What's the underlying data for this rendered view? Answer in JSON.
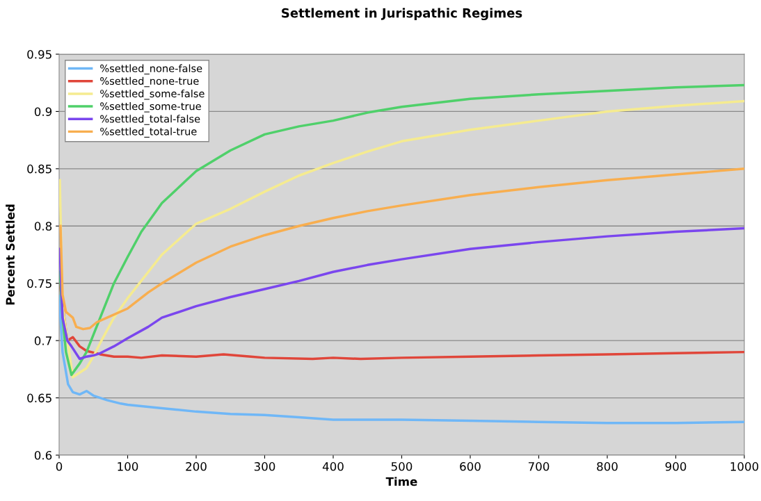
{
  "chart_data": {
    "type": "line",
    "title": "Settlement in Jurispathic Regimes",
    "xlabel": "Time",
    "ylabel": "Percent Settled",
    "xlim": [
      0,
      1000
    ],
    "ylim": [
      0.6,
      0.95
    ],
    "xticks": [
      0,
      100,
      200,
      300,
      400,
      500,
      600,
      700,
      800,
      900,
      1000
    ],
    "yticks": [
      {
        "value": 0.6,
        "label": "0.6"
      },
      {
        "value": 0.65,
        "label": "0.65"
      },
      {
        "value": 0.7,
        "label": "0.7"
      },
      {
        "value": 0.75,
        "label": "0.75"
      },
      {
        "value": 0.8,
        "label": "0.8"
      },
      {
        "value": 0.85,
        "label": "0.85"
      },
      {
        "value": 0.9,
        "label": "0.9"
      },
      {
        "value": 0.95,
        "label": "0.95"
      }
    ],
    "grid": "y",
    "legend": "upper left",
    "marker": "none",
    "line_style": "solid",
    "series": [
      {
        "name": "%settled_none-false",
        "color": "#6fb7f7",
        "x": [
          0,
          5,
          13,
          20,
          30,
          40,
          50,
          70,
          90,
          100,
          150,
          200,
          250,
          300,
          350,
          400,
          500,
          600,
          700,
          800,
          900,
          1000
        ],
        "values": [
          0.739,
          0.69,
          0.662,
          0.655,
          0.653,
          0.656,
          0.652,
          0.648,
          0.645,
          0.644,
          0.641,
          0.638,
          0.636,
          0.635,
          0.633,
          0.631,
          0.631,
          0.63,
          0.629,
          0.628,
          0.628,
          0.629
        ]
      },
      {
        "name": "%settled_none-true",
        "color": "#e0463a",
        "x": [
          1,
          5,
          12,
          20,
          30,
          40,
          60,
          80,
          100,
          120,
          150,
          200,
          240,
          280,
          300,
          370,
          400,
          440,
          500,
          600,
          700,
          800,
          900,
          1000
        ],
        "values": [
          0.75,
          null,
          0.7,
          0.703,
          0.695,
          0.691,
          0.688,
          0.686,
          0.686,
          0.685,
          0.687,
          0.686,
          0.688,
          0.686,
          0.685,
          0.684,
          0.685,
          0.684,
          0.685,
          0.686,
          0.687,
          0.688,
          0.689,
          0.69
        ]
      },
      {
        "name": "%settled_some-false",
        "color": "#f5eb90",
        "x": [
          1,
          5,
          10,
          20,
          30,
          40,
          50,
          60,
          80,
          100,
          150,
          200,
          250,
          300,
          350,
          400,
          450,
          500,
          600,
          700,
          800,
          900,
          1000
        ],
        "values": [
          0.84,
          0.73,
          null,
          0.668,
          0.672,
          0.676,
          0.686,
          0.698,
          0.72,
          0.737,
          0.775,
          0.802,
          0.815,
          0.83,
          0.844,
          0.855,
          0.865,
          0.874,
          0.884,
          0.892,
          0.9,
          0.905,
          0.909
        ]
      },
      {
        "name": "%settled_some-true",
        "color": "#4fd06a",
        "x": [
          1,
          5,
          10,
          18,
          30,
          40,
          50,
          60,
          80,
          100,
          120,
          150,
          200,
          250,
          300,
          350,
          400,
          450,
          500,
          600,
          700,
          800,
          900,
          1000
        ],
        "values": [
          0.76,
          0.72,
          0.69,
          0.67,
          0.68,
          0.69,
          0.705,
          0.72,
          0.75,
          0.773,
          0.795,
          0.82,
          0.848,
          0.866,
          0.88,
          0.887,
          0.892,
          0.899,
          0.904,
          0.911,
          0.915,
          0.918,
          0.921,
          0.923
        ]
      },
      {
        "name": "%settled_total-false",
        "color": "#7a46ee",
        "x": [
          1,
          5,
          12,
          18,
          30,
          40,
          50,
          60,
          80,
          100,
          130,
          150,
          200,
          250,
          300,
          350,
          400,
          450,
          500,
          600,
          700,
          800,
          900,
          1000
        ],
        "values": [
          0.78,
          0.72,
          0.7,
          0.695,
          0.684,
          0.686,
          0.687,
          0.689,
          0.695,
          0.702,
          0.712,
          0.72,
          0.73,
          0.738,
          0.745,
          0.752,
          0.76,
          0.766,
          0.771,
          0.78,
          0.786,
          0.791,
          0.795,
          0.798
        ]
      },
      {
        "name": "%settled_total-true",
        "color": "#f8ae4f",
        "x": [
          2,
          5,
          10,
          20,
          25,
          35,
          45,
          55,
          70,
          100,
          130,
          150,
          200,
          250,
          300,
          350,
          400,
          450,
          500,
          600,
          700,
          800,
          900,
          1000
        ],
        "values": [
          0.8,
          0.74,
          0.725,
          0.72,
          0.712,
          0.71,
          0.711,
          0.716,
          0.72,
          0.728,
          0.742,
          0.75,
          0.768,
          0.782,
          0.792,
          0.8,
          0.807,
          0.813,
          0.818,
          0.827,
          0.834,
          0.84,
          0.845,
          0.85
        ]
      }
    ]
  }
}
